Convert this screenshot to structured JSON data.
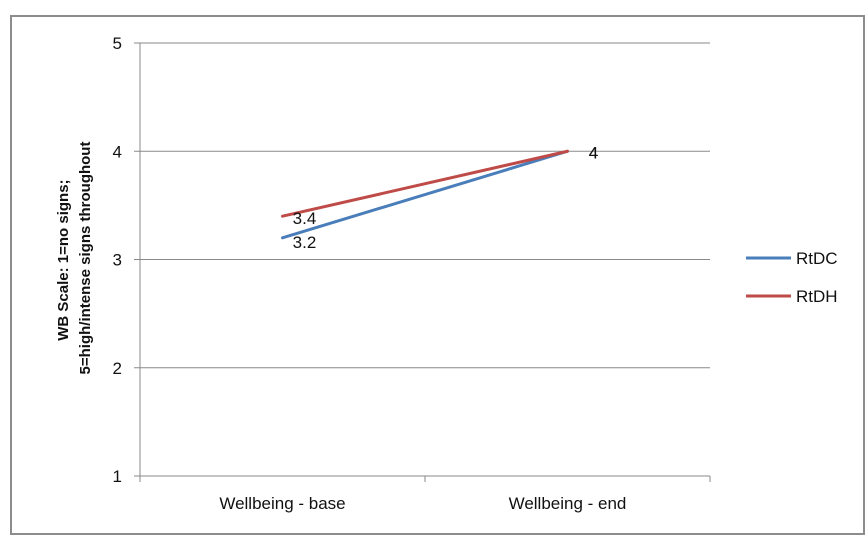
{
  "chart_data": {
    "type": "line",
    "title": "",
    "xlabel": "",
    "ylabel": [
      "WB Scale: 1=no signs;",
      "5=high/intense signs throughout"
    ],
    "categories": [
      "Wellbeing - base",
      "Wellbeing - end"
    ],
    "ylim": [
      1,
      5
    ],
    "yticks": [
      "1",
      "2",
      "3",
      "4",
      "5"
    ],
    "grid": true,
    "legend_position": "right",
    "series": [
      {
        "name": "RtDC",
        "values": [
          3.2,
          4
        ],
        "color": "#4a7ebb",
        "data_labels": [
          "3.2",
          "4"
        ]
      },
      {
        "name": "RtDH",
        "values": [
          3.4,
          4
        ],
        "color": "#be4b48",
        "data_labels": [
          "3.4",
          "4"
        ]
      }
    ]
  }
}
